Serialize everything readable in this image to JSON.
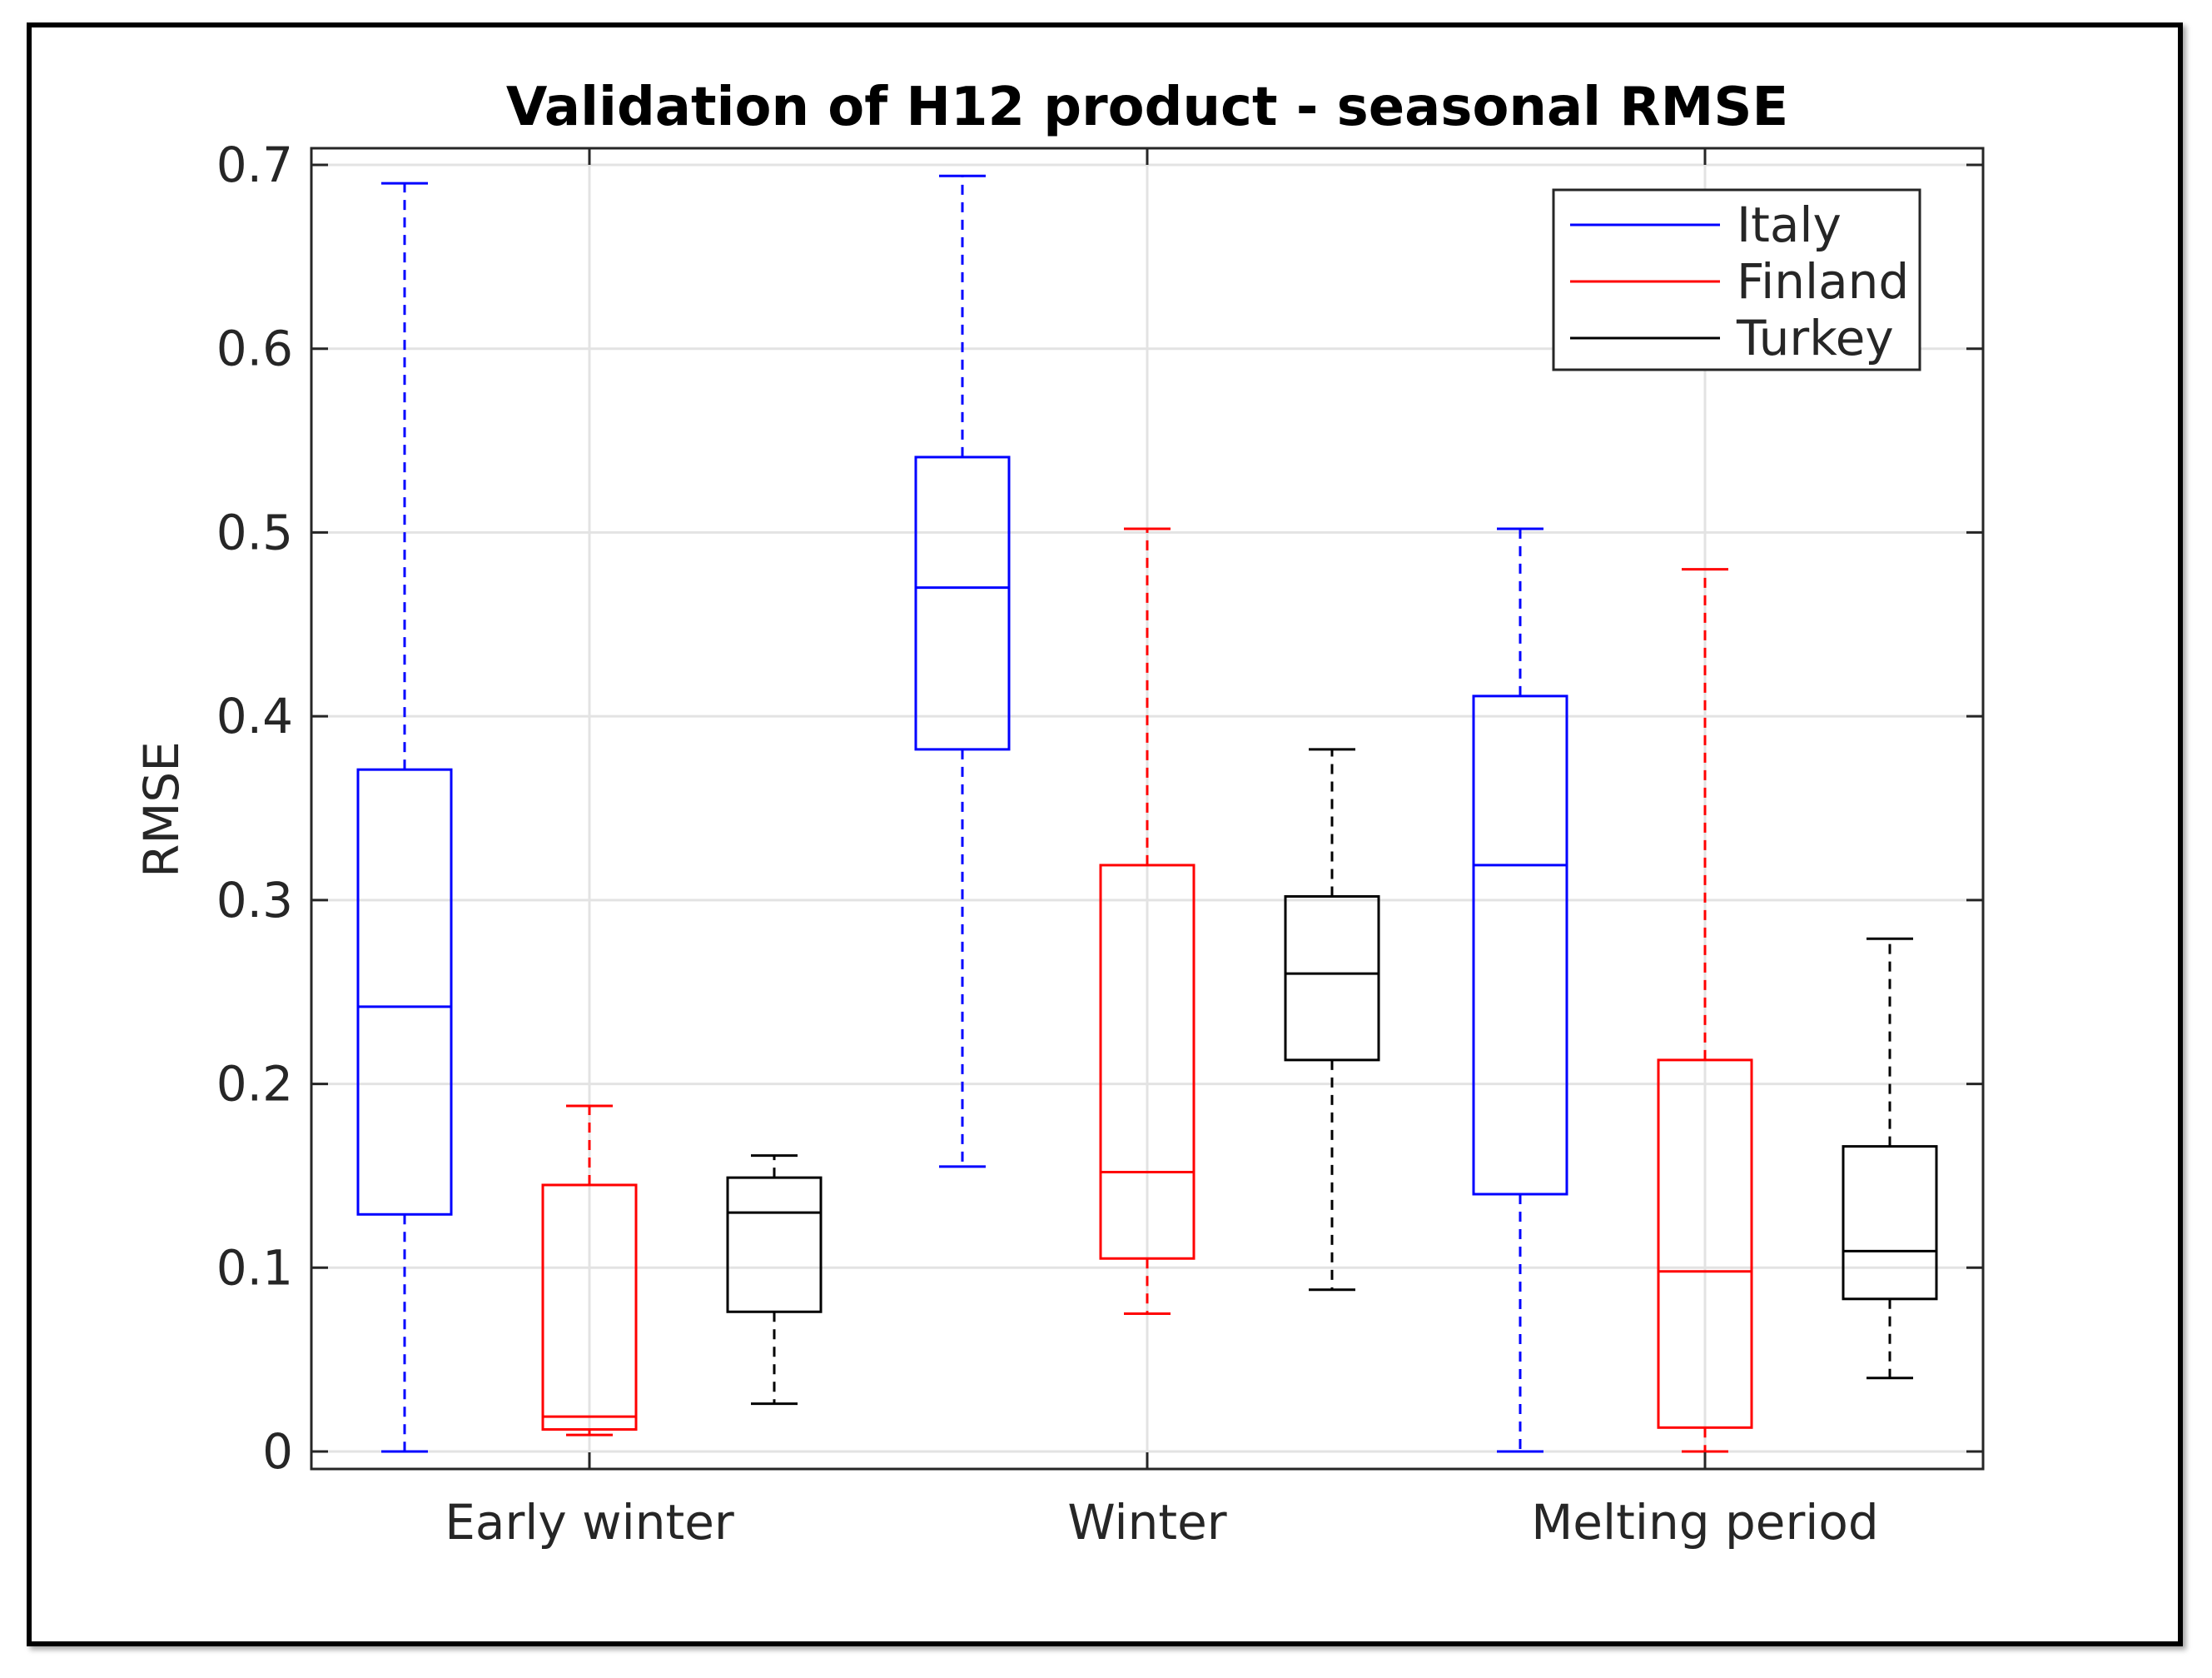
{
  "chart_data": {
    "type": "box",
    "title": "Validation of H12 product - seasonal RMSE",
    "xlabel": "",
    "ylabel": "RMSE",
    "ylim": [
      0,
      0.7
    ],
    "yticks": [
      "0",
      "0.1",
      "0.2",
      "0.3",
      "0.4",
      "0.5",
      "0.6",
      "0.7"
    ],
    "categories": [
      "Early winter",
      "Winter",
      "Melting period"
    ],
    "grid": true,
    "legend_position": "top-right",
    "series": [
      {
        "name": "Italy",
        "color": "#0000ff",
        "boxes": [
          {
            "min": 0.0,
            "q1": 0.129,
            "median": 0.242,
            "q3": 0.371,
            "max": 0.69
          },
          {
            "min": 0.155,
            "q1": 0.382,
            "median": 0.47,
            "q3": 0.541,
            "max": 0.694
          },
          {
            "min": 0.0,
            "q1": 0.14,
            "median": 0.319,
            "q3": 0.411,
            "max": 0.502
          }
        ]
      },
      {
        "name": "Finland",
        "color": "#ff0000",
        "boxes": [
          {
            "min": 0.009,
            "q1": 0.012,
            "median": 0.019,
            "q3": 0.145,
            "max": 0.188
          },
          {
            "min": 0.075,
            "q1": 0.105,
            "median": 0.152,
            "q3": 0.319,
            "max": 0.502
          },
          {
            "min": 0.0,
            "q1": 0.013,
            "median": 0.098,
            "q3": 0.213,
            "max": 0.48
          }
        ]
      },
      {
        "name": "Turkey",
        "color": "#000000",
        "boxes": [
          {
            "min": 0.026,
            "q1": 0.076,
            "median": 0.13,
            "q3": 0.149,
            "max": 0.161
          },
          {
            "min": 0.088,
            "q1": 0.213,
            "median": 0.26,
            "q3": 0.302,
            "max": 0.382
          },
          {
            "min": 0.04,
            "q1": 0.083,
            "median": 0.109,
            "q3": 0.166,
            "max": 0.279
          }
        ]
      }
    ]
  }
}
